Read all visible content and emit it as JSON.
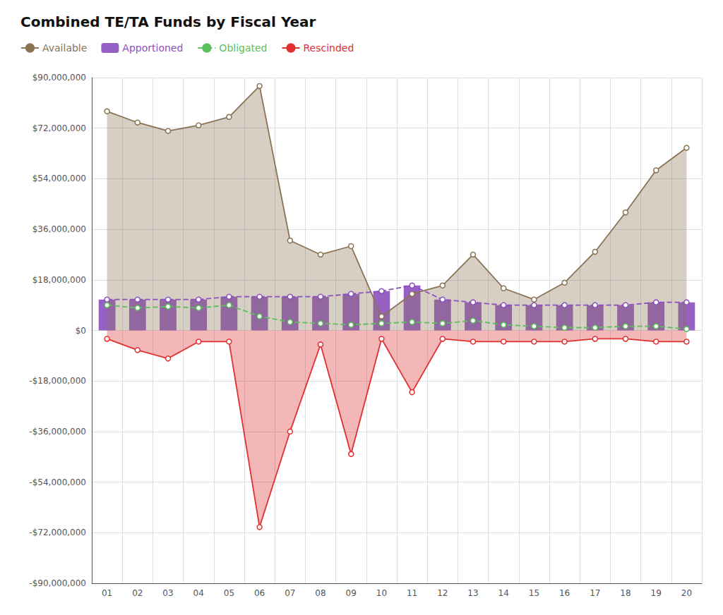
{
  "chart_data": {
    "type": "line",
    "title": "Combined TE/TA Funds by Fiscal Year",
    "categories": [
      "01",
      "02",
      "03",
      "04",
      "05",
      "06",
      "07",
      "08",
      "09",
      "10",
      "11",
      "12",
      "13",
      "14",
      "15",
      "16",
      "17",
      "18",
      "19",
      "20"
    ],
    "series": [
      {
        "name": "Available",
        "type": "area",
        "color": "#8B7355",
        "marker": "circle",
        "line_style": "solid",
        "values": [
          78000000,
          74000000,
          71000000,
          73000000,
          76000000,
          87000000,
          32000000,
          27000000,
          30000000,
          5000000,
          13000000,
          16000000,
          27000000,
          15000000,
          11000000,
          17000000,
          28000000,
          42000000,
          57000000,
          65000000
        ]
      },
      {
        "name": "Apportioned",
        "type": "bar",
        "color": "#8B4FBF",
        "marker": "circle",
        "line_style": "dashed",
        "values": [
          11000000,
          11000000,
          11000000,
          11000000,
          12000000,
          12000000,
          12000000,
          12000000,
          13000000,
          14000000,
          16000000,
          11000000,
          10000000,
          9000000,
          9000000,
          9000000,
          9000000,
          9000000,
          10000000,
          10000000
        ]
      },
      {
        "name": "Obligated",
        "type": "line",
        "color": "#5BBF5B",
        "marker": "circle",
        "line_style": "dashed",
        "values": [
          9000000,
          8000000,
          8500000,
          8000000,
          9000000,
          5000000,
          3000000,
          2500000,
          2000000,
          2500000,
          3000000,
          2500000,
          3500000,
          2000000,
          1500000,
          1000000,
          1000000,
          1500000,
          1500000,
          500000
        ]
      },
      {
        "name": "Rescinded",
        "type": "area",
        "color": "#E03030",
        "marker": "circle",
        "line_style": "solid",
        "values": [
          -3000000,
          -7000000,
          -10000000,
          -4000000,
          -4000000,
          -70000000,
          -36000000,
          -5000000,
          -44000000,
          -3000000,
          -22000000,
          -3000000,
          -4000000,
          -4000000,
          -4000000,
          -4000000,
          -3000000,
          -3000000,
          -4000000,
          -4000000
        ]
      }
    ],
    "ylim": [
      -90000000,
      90000000
    ],
    "yticks": [
      {
        "value": -90000000,
        "label": "-$90,000,000"
      },
      {
        "value": -72000000,
        "label": "-$72,000,000"
      },
      {
        "value": -54000000,
        "label": "-$54,000,000"
      },
      {
        "value": -36000000,
        "label": "-$36,000,000"
      },
      {
        "value": -18000000,
        "label": "-$18,000,000"
      },
      {
        "value": 0,
        "label": "$0"
      },
      {
        "value": 18000000,
        "label": "$18,000,000"
      },
      {
        "value": 36000000,
        "label": "$36,000,000"
      },
      {
        "value": 54000000,
        "label": "$54,000,000"
      },
      {
        "value": 72000000,
        "label": "$72,000,000"
      },
      {
        "value": 90000000,
        "label": "$90,000,000"
      }
    ],
    "grid": true,
    "legend": "top-left"
  }
}
